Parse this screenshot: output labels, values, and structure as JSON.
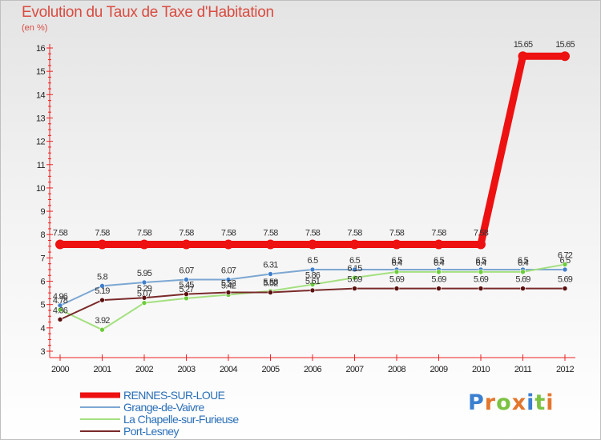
{
  "chart_data": {
    "type": "line",
    "title": "Evolution du Taux de Taxe d'Habitation",
    "unit_label": "(en %)",
    "x": [
      "2000",
      "2001",
      "2002",
      "2003",
      "2004",
      "2005",
      "2006",
      "2007",
      "2008",
      "2009",
      "2010",
      "2011",
      "2012"
    ],
    "ylim": [
      3,
      16
    ],
    "yticks": [
      3,
      4,
      5,
      6,
      7,
      8,
      9,
      10,
      11,
      12,
      13,
      14,
      15,
      16
    ],
    "series": [
      {
        "name": "RENNES-SUR-LOUE",
        "color": "#ee1111",
        "width": 9,
        "marker_color": "#ee1111",
        "values": [
          7.58,
          7.58,
          7.58,
          7.58,
          7.58,
          7.58,
          7.58,
          7.58,
          7.58,
          7.58,
          7.58,
          15.65,
          15.65
        ],
        "labels": [
          "7.58",
          "7.58",
          "7.58",
          "7.58",
          "7.58",
          "7.58",
          "7.58",
          "7.58",
          "7.58",
          "7.58",
          "7.58",
          "15.65",
          "15.65"
        ]
      },
      {
        "name": "Grange-de-Vaivre",
        "color": "#7ca7d2",
        "width": 2,
        "marker_color": "#3f7fcc",
        "values": [
          4.96,
          5.8,
          5.95,
          6.07,
          6.07,
          6.31,
          6.5,
          6.5,
          6.5,
          6.5,
          6.5,
          6.5,
          6.5
        ],
        "labels": [
          "4.96",
          "5.8",
          "5.95",
          "6.07",
          "6.07",
          "6.31",
          "6.5",
          "6.5",
          "6.5",
          "6.5",
          "6.5",
          "6.5",
          "6.5"
        ]
      },
      {
        "name": "La Chapelle-sur-Furieuse",
        "color": "#a4e07f",
        "width": 2,
        "marker_color": "#6ccc3a",
        "values": [
          4.78,
          3.92,
          5.07,
          5.27,
          5.42,
          5.58,
          5.86,
          6.15,
          6.4,
          6.4,
          6.4,
          6.4,
          6.72
        ],
        "labels": [
          "4.78",
          "3.92",
          "5.07",
          "5.27",
          "5.42",
          "5.58",
          "5.86",
          "6.15",
          "6.4",
          "6.4",
          "6.4",
          "6.4",
          "6.72"
        ]
      },
      {
        "name": "Port-Lesney",
        "color": "#7a2a2a",
        "width": 2,
        "marker_color": "#5a1010",
        "values": [
          4.36,
          5.19,
          5.29,
          5.45,
          5.52,
          5.52,
          5.61,
          5.69,
          5.69,
          5.69,
          5.69,
          5.69,
          5.69
        ],
        "labels": [
          "4.36",
          "5.19",
          "5.29",
          "5.45",
          "5.52",
          "5.52",
          "5.61",
          "5.69",
          "5.69",
          "5.69",
          "5.69",
          "5.69",
          "5.69"
        ]
      }
    ]
  },
  "logo": {
    "letters": [
      "P",
      "r",
      "o",
      "x",
      "i",
      "t",
      "i"
    ],
    "colors": [
      "#3a7fd0",
      "#e3762d",
      "#7cc242",
      "#e3762d",
      "#3a7fd0",
      "#7cc242",
      "#e3762d"
    ]
  }
}
